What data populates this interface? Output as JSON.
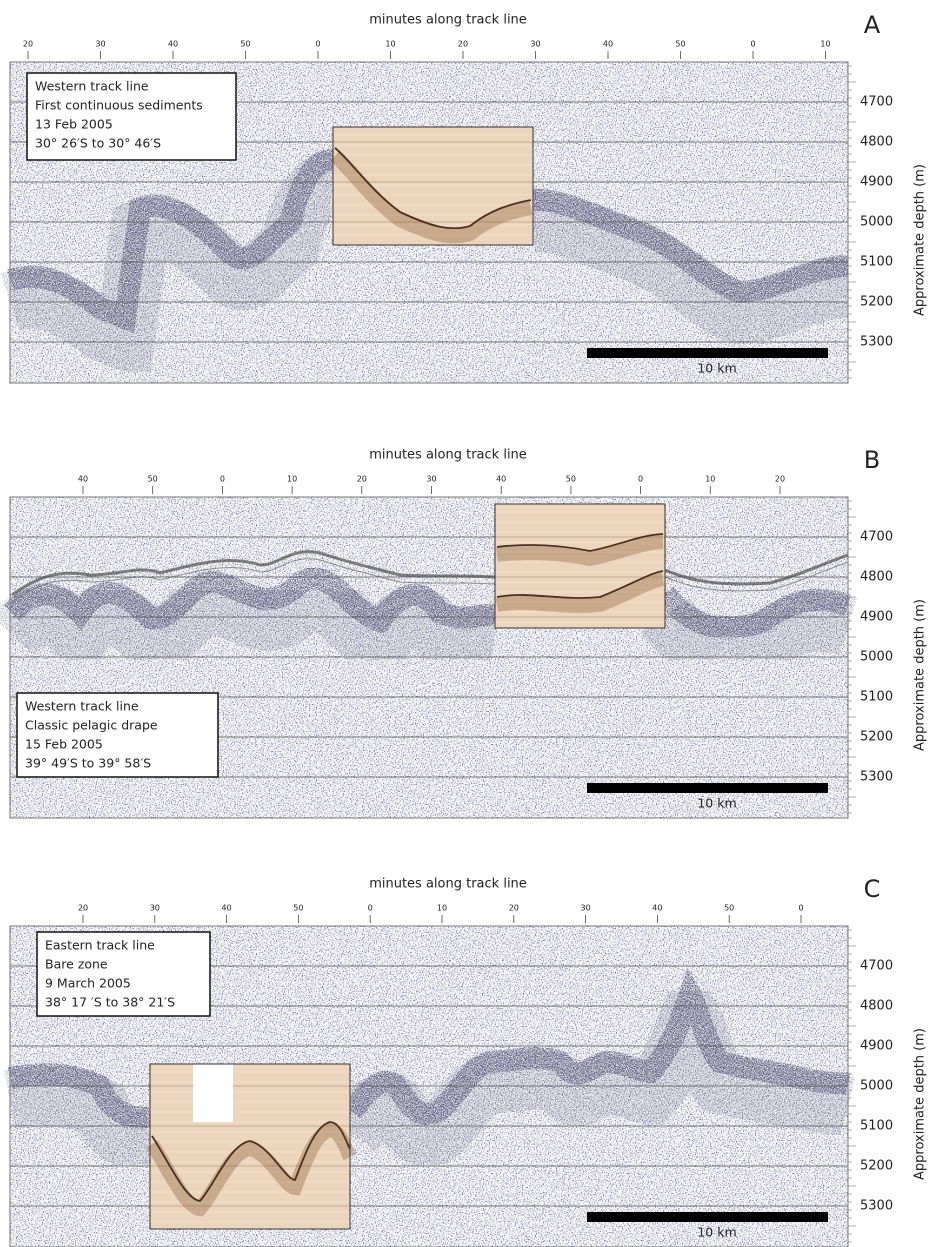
{
  "panels": [
    {
      "letter": "A",
      "axis_title": "minutes along track line",
      "top_ticks": [
        "20",
        "30",
        "40",
        "50",
        "0",
        "10",
        "20",
        "30",
        "40",
        "50",
        "0",
        "10"
      ],
      "depth_ticks": [
        "4700",
        "4800",
        "4900",
        "5000",
        "5100",
        "5200",
        "5300"
      ],
      "depth_label": "Approximate depth (m)",
      "info": [
        "Western track line",
        "First continuous sediments",
        "13 Feb 2005",
        "30° 26′S to 30° 46′S"
      ],
      "scale_bar": "10 km"
    },
    {
      "letter": "B",
      "axis_title": "minutes along track line",
      "top_ticks": [
        "40",
        "50",
        "0",
        "10",
        "20",
        "30",
        "40",
        "50",
        "0",
        "10",
        "20"
      ],
      "depth_ticks": [
        "4700",
        "4800",
        "4900",
        "5000",
        "5100",
        "5200",
        "5300"
      ],
      "depth_label": "Approximate depth (m)",
      "info": [
        "Western track line",
        "Classic pelagic drape",
        "15 Feb 2005",
        "39° 49′S to 39° 58′S"
      ],
      "scale_bar": "10 km"
    },
    {
      "letter": "C",
      "axis_title": "minutes along track line",
      "top_ticks": [
        "20",
        "30",
        "40",
        "50",
        "0",
        "10",
        "20",
        "30",
        "40",
        "50",
        "0"
      ],
      "depth_ticks": [
        "4700",
        "4800",
        "4900",
        "5000",
        "5100",
        "5200",
        "5300"
      ],
      "depth_label": "Approximate depth (m)",
      "info": [
        "Eastern track line",
        "Bare zone",
        "9 March 2005",
        "38° 17 ′S to 38° 21′S"
      ],
      "scale_bar": "10 km"
    }
  ]
}
